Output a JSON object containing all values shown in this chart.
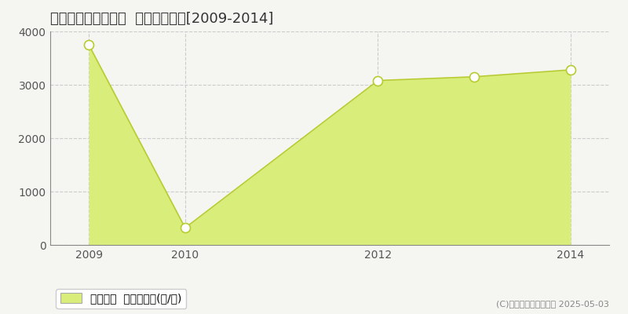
{
  "title": "久慈郡大子町小生瀬  林地価格推移[2009-2014]",
  "years": [
    2009,
    2010,
    2012,
    2013,
    2014
  ],
  "values": [
    3750,
    320,
    3080,
    3150,
    3280
  ],
  "line_color": "#b8cc30",
  "fill_color": "#d8ed7a",
  "fill_alpha": 1.0,
  "marker_color": "white",
  "marker_edgecolor": "#b8cc30",
  "marker_size": 5,
  "ylim": [
    0,
    4000
  ],
  "yticks": [
    0,
    1000,
    2000,
    3000,
    4000
  ],
  "xticks": [
    2009,
    2010,
    2012,
    2014
  ],
  "xlim_left": 2008.6,
  "xlim_right": 2014.4,
  "grid_color": "#cccccc",
  "grid_style": "--",
  "bg_color": "#f5f5f2",
  "plot_bg_color": "#f5f5f2",
  "legend_label": "林地価格  平均坪単価(円/坪)",
  "copyright": "(C)土地価格ドットコム 2025-05-03",
  "title_fontsize": 13,
  "tick_fontsize": 10,
  "legend_fontsize": 10
}
